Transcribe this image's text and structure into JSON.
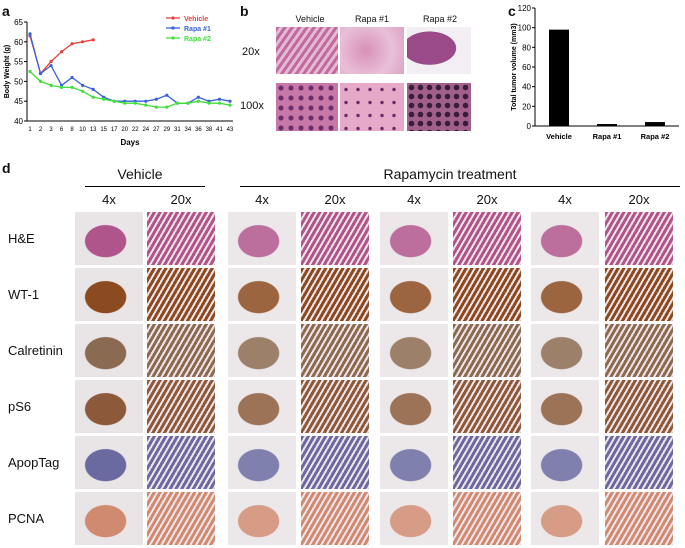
{
  "panels": {
    "a": {
      "label": "a"
    },
    "b": {
      "label": "b"
    },
    "c": {
      "label": "c"
    },
    "d": {
      "label": "d"
    }
  },
  "chart_data": [
    {
      "type": "line",
      "panel": "a",
      "xlabel": "Days",
      "ylabel": "Body Weight (g)",
      "ylim": [
        40,
        65
      ],
      "yticks": [
        40,
        45,
        50,
        55,
        60,
        65
      ],
      "xticks": [
        "1",
        "2",
        "3",
        "6",
        "8",
        "10",
        "13",
        "15",
        "17",
        "20",
        "22",
        "24",
        "27",
        "29",
        "31",
        "34",
        "36",
        "38",
        "41",
        "43"
      ],
      "legend_position": "top-right",
      "series": [
        {
          "name": "Vehicle",
          "color": "#e8413c",
          "points": [
            [
              1,
              61.5
            ],
            [
              2,
              52
            ],
            [
              3,
              55
            ],
            [
              6,
              57.5
            ],
            [
              8,
              59.5
            ],
            [
              10,
              60
            ],
            [
              13,
              60.5
            ]
          ]
        },
        {
          "name": "Rapa #1",
          "color": "#3a62d6",
          "points": [
            [
              1,
              62
            ],
            [
              2,
              52
            ],
            [
              3,
              54
            ],
            [
              6,
              49
            ],
            [
              8,
              51
            ],
            [
              10,
              49
            ],
            [
              13,
              48
            ],
            [
              15,
              46
            ],
            [
              17,
              45
            ],
            [
              20,
              45
            ],
            [
              22,
              45
            ],
            [
              24,
              45
            ],
            [
              27,
              45.5
            ],
            [
              29,
              46.5
            ],
            [
              31,
              44.5
            ],
            [
              34,
              44.5
            ],
            [
              36,
              46
            ],
            [
              38,
              45
            ],
            [
              41,
              45.5
            ],
            [
              43,
              45
            ]
          ]
        },
        {
          "name": "Rapa #2",
          "color": "#3fe03a",
          "points": [
            [
              1,
              52.5
            ],
            [
              2,
              50
            ],
            [
              3,
              49
            ],
            [
              6,
              48.5
            ],
            [
              8,
              48.5
            ],
            [
              10,
              47.5
            ],
            [
              13,
              46
            ],
            [
              15,
              45.5
            ],
            [
              17,
              45
            ],
            [
              20,
              44.5
            ],
            [
              22,
              44.5
            ],
            [
              24,
              44
            ],
            [
              27,
              43.5
            ],
            [
              29,
              43.5
            ],
            [
              31,
              44.5
            ],
            [
              34,
              44.5
            ],
            [
              36,
              45
            ],
            [
              38,
              44.5
            ],
            [
              41,
              44.5
            ],
            [
              43,
              44
            ]
          ]
        }
      ]
    },
    {
      "type": "bar",
      "panel": "c",
      "ylabel": "Total tumor volume (mm3)",
      "ylim": [
        0,
        120
      ],
      "yticks": [
        0,
        20,
        40,
        60,
        80,
        100,
        120
      ],
      "categories": [
        "Vehicle",
        "Rapa #1",
        "Rapa #2"
      ],
      "values": [
        98,
        2,
        4
      ],
      "bar_color": "#000000"
    }
  ],
  "panel_b": {
    "columns": [
      "Vehicle",
      "Rapa #1",
      "Rapa #2"
    ],
    "rows": [
      "20x",
      "100x"
    ]
  },
  "panel_d": {
    "group_vehicle": "Vehicle",
    "group_rapa": "Rapamycin treatment",
    "mags": [
      "4x",
      "20x",
      "4x",
      "20x",
      "4x",
      "20x",
      "4x",
      "20x"
    ],
    "stains": [
      {
        "name": "H&E",
        "color": "#b0548c"
      },
      {
        "name": "WT-1",
        "color": "#8b4a1f"
      },
      {
        "name": "Calretinin",
        "color": "#8a6a50"
      },
      {
        "name": "pS6",
        "color": "#8c5a3a"
      },
      {
        "name": "ApopTag",
        "color": "#6a6aa0"
      },
      {
        "name": "PCNA",
        "color": "#d08a70"
      }
    ]
  }
}
